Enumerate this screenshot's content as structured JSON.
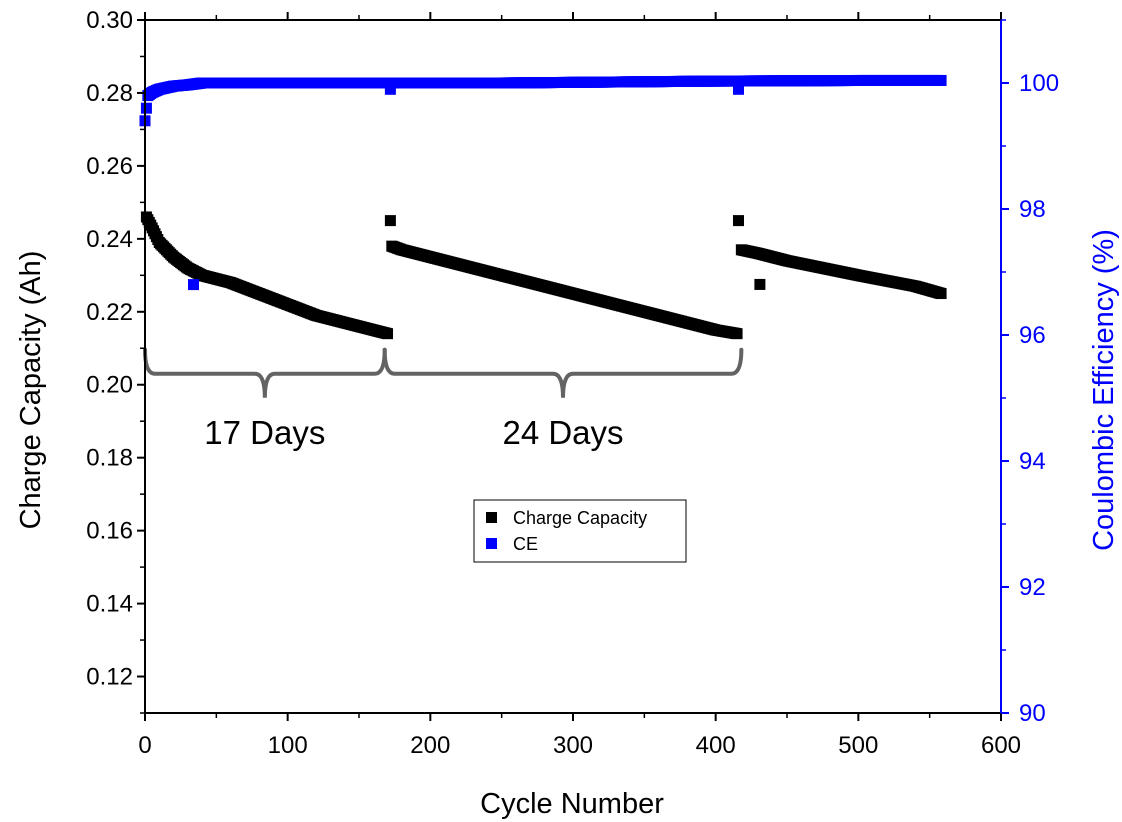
{
  "chart_data": {
    "type": "scatter",
    "x_axis": {
      "label": "Cycle Number",
      "range": [
        0,
        600
      ],
      "ticks": [
        0,
        100,
        200,
        300,
        400,
        500,
        600
      ]
    },
    "y_axis_left": {
      "label": "Charge Capacity (Ah)",
      "range": [
        0.11,
        0.3
      ],
      "ticks": [
        0.12,
        0.14,
        0.16,
        0.18,
        0.2,
        0.22,
        0.24,
        0.26,
        0.28,
        0.3
      ],
      "tick_labels": [
        "0.12",
        "0.14",
        "0.16",
        "0.18",
        "0.20",
        "0.22",
        "0.24",
        "0.26",
        "0.28",
        "0.30"
      ]
    },
    "y_axis_right": {
      "label": "Coulombic Efficiency (%)",
      "range": [
        90,
        101
      ],
      "ticks": [
        90,
        92,
        94,
        96,
        98,
        100
      ],
      "color": "#0000ff"
    },
    "legend": {
      "position": "center",
      "entries": [
        {
          "label": "Charge Capacity",
          "color": "#000000",
          "marker": "square"
        },
        {
          "label": "CE",
          "color": "#0000ff",
          "marker": "square"
        }
      ]
    },
    "series": [
      {
        "name": "Charge Capacity",
        "axis": "left",
        "color": "#000000",
        "segments": [
          {
            "x": [
              1,
              5,
              10,
              20,
              30,
              40,
              60,
              80,
              100,
              120,
              140,
              160,
              170
            ],
            "y": [
              0.246,
              0.243,
              0.239,
              0.235,
              0.232,
              0.23,
              0.228,
              0.225,
              0.222,
              0.219,
              0.217,
              0.215,
              0.214
            ]
          },
          {
            "x": [
              173,
              180,
              200,
              250,
              300,
              350,
              400,
              415
            ],
            "y": [
              0.238,
              0.237,
              0.235,
              0.23,
              0.225,
              0.22,
              0.215,
              0.214
            ]
          },
          {
            "x": [
              418,
              430,
              450,
              500,
              540,
              558
            ],
            "y": [
              0.237,
              0.236,
              0.234,
              0.23,
              0.227,
              0.225
            ]
          }
        ],
        "outliers": {
          "x": [
            172,
            416,
            431
          ],
          "y": [
            0.245,
            0.245,
            0.2275
          ]
        }
      },
      {
        "name": "CE",
        "axis": "right",
        "color": "#0000ff",
        "segments": [
          {
            "x": [
              0,
              2,
              5,
              10,
              20,
              30,
              40,
              100,
              170,
              250,
              400,
              500,
              558
            ],
            "y": [
              99.4,
              99.8,
              99.85,
              99.9,
              99.95,
              99.97,
              100.0,
              100.0,
              100.0,
              100.0,
              100.03,
              100.04,
              100.04
            ]
          }
        ],
        "outliers": {
          "x": [
            34,
            172,
            416
          ],
          "y": [
            96.8,
            99.9,
            99.9
          ]
        }
      }
    ],
    "annotations": [
      {
        "text": "17 Days",
        "from_cycle": 0,
        "to_cycle": 168,
        "y": 0.203
      },
      {
        "text": "24 Days",
        "from_cycle": 168,
        "to_cycle": 418,
        "y": 0.203
      }
    ],
    "grid": false
  }
}
